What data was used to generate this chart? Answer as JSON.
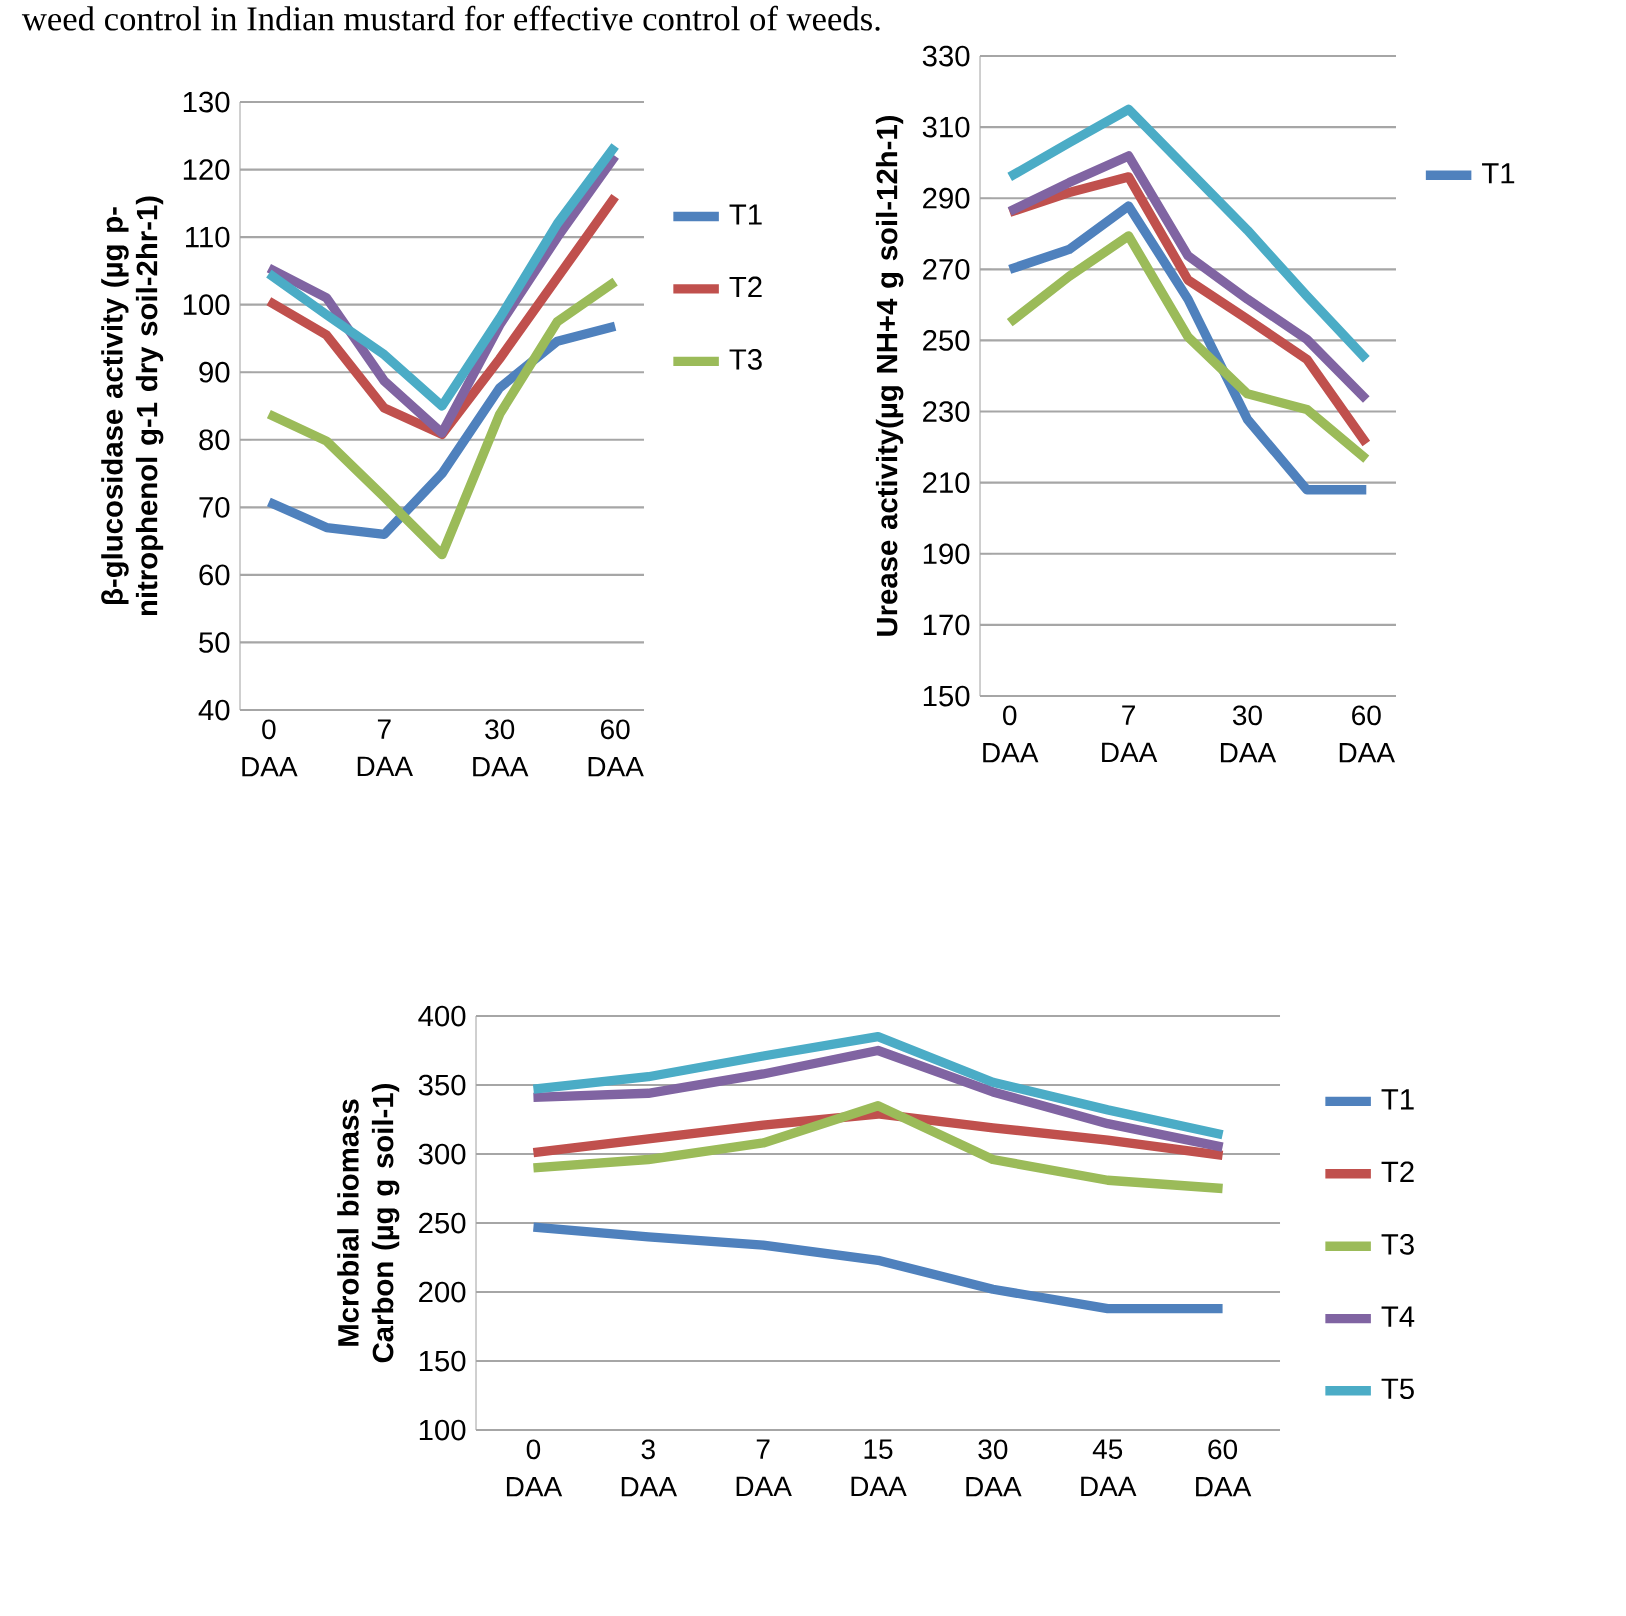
{
  "chart_data": [
    {
      "type": "line",
      "annotations": [
        "weed control in Indian mustard for effective control of weeds."
      ],
      "ylabel": "β-glucosidase activity (µg p-nitrophenol g-1 dry soil-2hr-1)",
      "categories": [
        "0 DAA",
        null,
        "7 DAA",
        null,
        "30 DAA",
        null,
        "60 DAA"
      ],
      "ylim": [
        40,
        130
      ],
      "yticks": [
        40,
        50,
        60,
        70,
        80,
        90,
        100,
        110,
        120,
        130
      ],
      "grid": "y",
      "legend": "right",
      "series": [
        {
          "name": "T1",
          "color": "#4f81bd",
          "values": [
            70.8,
            67,
            66,
            75,
            87.7,
            94.6,
            96.8
          ]
        },
        {
          "name": "T2",
          "color": "#c0504d",
          "values": [
            100.5,
            95.5,
            84.7,
            80.8,
            92,
            104,
            116
          ]
        },
        {
          "name": "T3",
          "color": "#9bbb59",
          "values": [
            83.8,
            79.8,
            71.5,
            63,
            83.8,
            97.5,
            103.4
          ]
        },
        {
          "color": "#8064a2",
          "values": [
            105.4,
            101,
            88.7,
            81,
            97,
            110,
            122
          ]
        },
        {
          "color": "#4bacc6",
          "values": [
            104.6,
            98.5,
            92.6,
            85,
            98,
            112,
            123.5
          ]
        }
      ]
    },
    {
      "type": "line",
      "ylabel": "Urease activity(µg NH+4 g soil-12h-1)",
      "categories": [
        "0 DAA",
        null,
        "7 DAA",
        null,
        "30 DAA",
        null,
        "60 DAA"
      ],
      "ylim": [
        150,
        330
      ],
      "yticks": [
        150,
        170,
        190,
        210,
        230,
        250,
        270,
        290,
        310,
        330
      ],
      "grid": "y",
      "legend": "right",
      "series": [
        {
          "name": "T1",
          "color": "#4f81bd",
          "values": [
            270,
            275.6,
            287.8,
            261.6,
            227.8,
            208,
            208
          ]
        },
        {
          "color": "#c0504d",
          "values": [
            286,
            291.6,
            296,
            267,
            256,
            244.7,
            221
          ]
        },
        {
          "color": "#9bbb59",
          "values": [
            255,
            268,
            279.4,
            251,
            235,
            230.6,
            216.6
          ]
        },
        {
          "color": "#8064a2",
          "values": [
            286.3,
            294.4,
            301.9,
            273.8,
            261.6,
            250.3,
            233.4
          ]
        },
        {
          "color": "#4bacc6",
          "values": [
            296,
            305.6,
            315,
            298,
            281,
            262.5,
            244.7
          ]
        }
      ]
    },
    {
      "type": "line",
      "ylabel": "Mcrobial biomass Carbon (µg g soil-1)",
      "categories": [
        "0 DAA",
        "3 DAA",
        "7 DAA",
        "15 DAA",
        "30 DAA",
        "45 DAA",
        "60 DAA"
      ],
      "ylim": [
        100,
        400
      ],
      "yticks": [
        100,
        150,
        200,
        250,
        300,
        350,
        400
      ],
      "grid": "y",
      "legend": "right",
      "series": [
        {
          "name": "T1",
          "color": "#4f81bd",
          "values": [
            247,
            240,
            234,
            223,
            202,
            188,
            188
          ]
        },
        {
          "name": "T2",
          "color": "#c0504d",
          "values": [
            301,
            311,
            321,
            329,
            319,
            310,
            299
          ]
        },
        {
          "name": "T3",
          "color": "#9bbb59",
          "values": [
            290,
            296,
            308,
            335,
            296,
            281,
            275
          ]
        },
        {
          "name": "T4",
          "color": "#8064a2",
          "values": [
            341,
            344,
            358,
            375,
            345,
            322,
            305
          ]
        },
        {
          "name": "T5",
          "color": "#4bacc6",
          "values": [
            347,
            356,
            371,
            385,
            352,
            332,
            314
          ]
        }
      ]
    }
  ]
}
